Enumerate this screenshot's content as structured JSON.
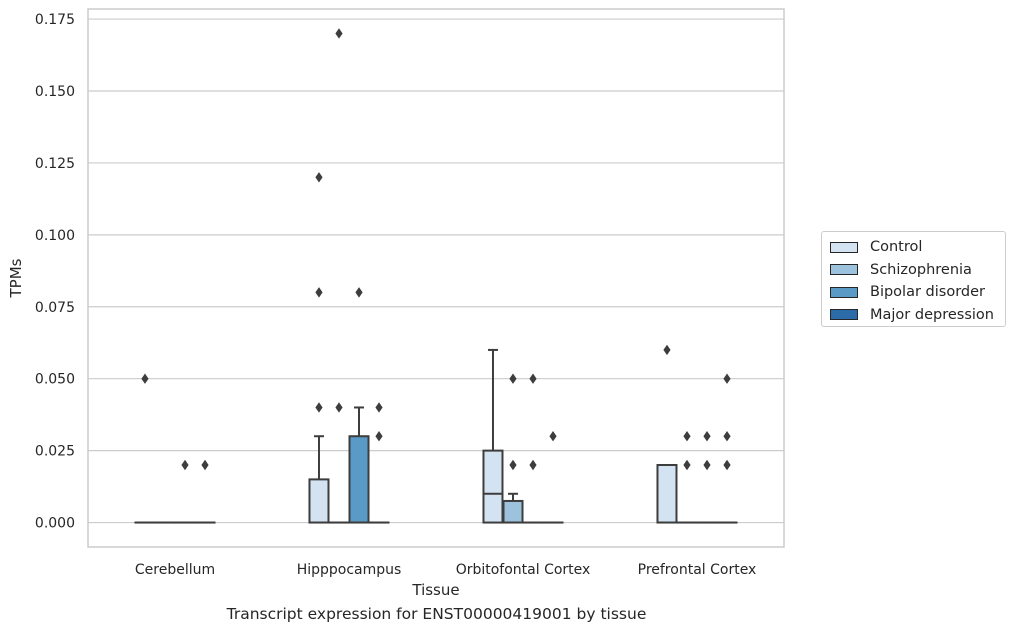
{
  "chart_data": {
    "type": "box",
    "title": "Transcript expression for ENST00000419001 by tissue",
    "xlabel": "Tissue",
    "ylabel": "TPMs",
    "ylim": [
      -0.0085,
      0.1785
    ],
    "yticks": [
      0.0,
      0.025,
      0.05,
      0.075,
      0.1,
      0.125,
      0.15,
      0.175
    ],
    "ytick_labels": [
      "0.000",
      "0.025",
      "0.050",
      "0.075",
      "0.100",
      "0.125",
      "0.150",
      "0.175"
    ],
    "grid": true,
    "legend_position": "right",
    "categories": [
      "Cerebellum",
      "Hipppocampus",
      "Orbitofontal Cortex",
      "Prefrontal Cortex"
    ],
    "series": [
      {
        "name": "Control",
        "color": "#d4e3f2",
        "boxes": [
          {
            "q1": 0,
            "median": 0,
            "q3": 0,
            "whisker_low": 0,
            "whisker_high": 0,
            "outliers": [
              0.05
            ]
          },
          {
            "q1": 0,
            "median": 0,
            "q3": 0.015,
            "whisker_low": 0,
            "whisker_high": 0.03,
            "outliers": [
              0.04,
              0.08,
              0.12
            ]
          },
          {
            "q1": 0,
            "median": 0.01,
            "q3": 0.025,
            "whisker_low": 0,
            "whisker_high": 0.06,
            "outliers": []
          },
          {
            "q1": 0,
            "median": 0,
            "q3": 0.02,
            "whisker_low": 0,
            "whisker_high": 0.02,
            "outliers": [
              0.06
            ]
          }
        ]
      },
      {
        "name": "Schizophrenia",
        "color": "#9dc2dd",
        "boxes": [
          {
            "q1": 0,
            "median": 0,
            "q3": 0,
            "whisker_low": 0,
            "whisker_high": 0,
            "outliers": []
          },
          {
            "q1": 0,
            "median": 0,
            "q3": 0,
            "whisker_low": 0,
            "whisker_high": 0,
            "outliers": [
              0.04,
              0.17
            ]
          },
          {
            "q1": 0,
            "median": 0,
            "q3": 0.0075,
            "whisker_low": 0,
            "whisker_high": 0.01,
            "outliers": [
              0.02,
              0.05
            ]
          },
          {
            "q1": 0,
            "median": 0,
            "q3": 0,
            "whisker_low": 0,
            "whisker_high": 0,
            "outliers": [
              0.02,
              0.03
            ]
          }
        ]
      },
      {
        "name": "Bipolar disorder",
        "color": "#5a9ac7",
        "boxes": [
          {
            "q1": 0,
            "median": 0,
            "q3": 0,
            "whisker_low": 0,
            "whisker_high": 0,
            "outliers": [
              0.02
            ]
          },
          {
            "q1": 0,
            "median": 0,
            "q3": 0.03,
            "whisker_low": 0,
            "whisker_high": 0.04,
            "outliers": [
              0.08
            ]
          },
          {
            "q1": 0,
            "median": 0,
            "q3": 0,
            "whisker_low": 0,
            "whisker_high": 0,
            "outliers": [
              0.02,
              0.05
            ]
          },
          {
            "q1": 0,
            "median": 0,
            "q3": 0,
            "whisker_low": 0,
            "whisker_high": 0,
            "outliers": [
              0.02,
              0.03
            ]
          }
        ]
      },
      {
        "name": "Major depression",
        "color": "#2b6ba8",
        "boxes": [
          {
            "q1": 0,
            "median": 0,
            "q3": 0,
            "whisker_low": 0,
            "whisker_high": 0,
            "outliers": [
              0.02
            ]
          },
          {
            "q1": 0,
            "median": 0,
            "q3": 0,
            "whisker_low": 0,
            "whisker_high": 0,
            "outliers": [
              0.03,
              0.04
            ]
          },
          {
            "q1": 0,
            "median": 0,
            "q3": 0,
            "whisker_low": 0,
            "whisker_high": 0,
            "outliers": [
              0.03
            ]
          },
          {
            "q1": 0,
            "median": 0,
            "q3": 0,
            "whisker_low": 0,
            "whisker_high": 0,
            "outliers": [
              0.02,
              0.03,
              0.05
            ]
          }
        ]
      }
    ]
  }
}
